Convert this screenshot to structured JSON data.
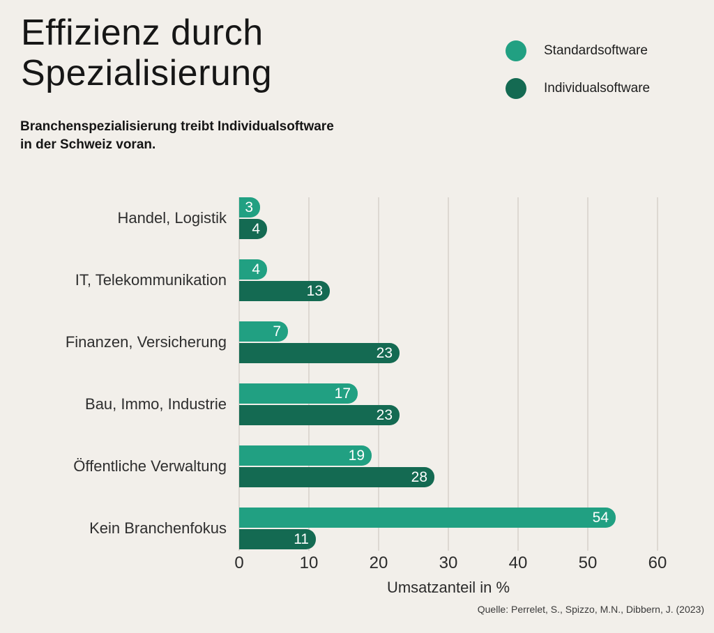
{
  "page": {
    "background_color": "#f2efea",
    "gridline_color": "#ddd8d2"
  },
  "header": {
    "title_line1": "Effizienz durch",
    "title_line2": "Spezialisierung",
    "subtitle_line1": "Branchenspezialisierung treibt Individualsoftware",
    "subtitle_line2": "in der Schweiz voran."
  },
  "legend": {
    "position": "top-right",
    "items": [
      {
        "label": "Standardsoftware",
        "color": "#21a082"
      },
      {
        "label": "Individualsoftware",
        "color": "#146a52"
      }
    ]
  },
  "chart_data": {
    "type": "bar",
    "orientation": "horizontal",
    "title": "Effizienz durch Spezialisierung",
    "subtitle": "Branchenspezialisierung treibt Individualsoftware in der Schweiz voran.",
    "categories": [
      "Handel, Logistik",
      "IT, Telekommunikation",
      "Finanzen, Versicherung",
      "Bau, Immo, Industrie",
      "Öffentliche Verwaltung",
      "Kein Branchenfokus"
    ],
    "series": [
      {
        "name": "Standardsoftware",
        "color": "#21a082",
        "values": [
          3,
          4,
          7,
          17,
          19,
          54
        ]
      },
      {
        "name": "Individualsoftware",
        "color": "#146a52",
        "values": [
          4,
          13,
          23,
          23,
          28,
          11
        ]
      }
    ],
    "xlabel": "Umsatzanteil in %",
    "ylabel": "",
    "xlim": [
      0,
      60
    ],
    "xticks": [
      0,
      10,
      20,
      30,
      40,
      50,
      60
    ],
    "grid": true,
    "value_labels": "inside-end, white",
    "legend_position": "top-right"
  },
  "source": {
    "text": "Quelle: Perrelet, S., Spizzo, M.N., Dibbern, J. (2023)"
  }
}
